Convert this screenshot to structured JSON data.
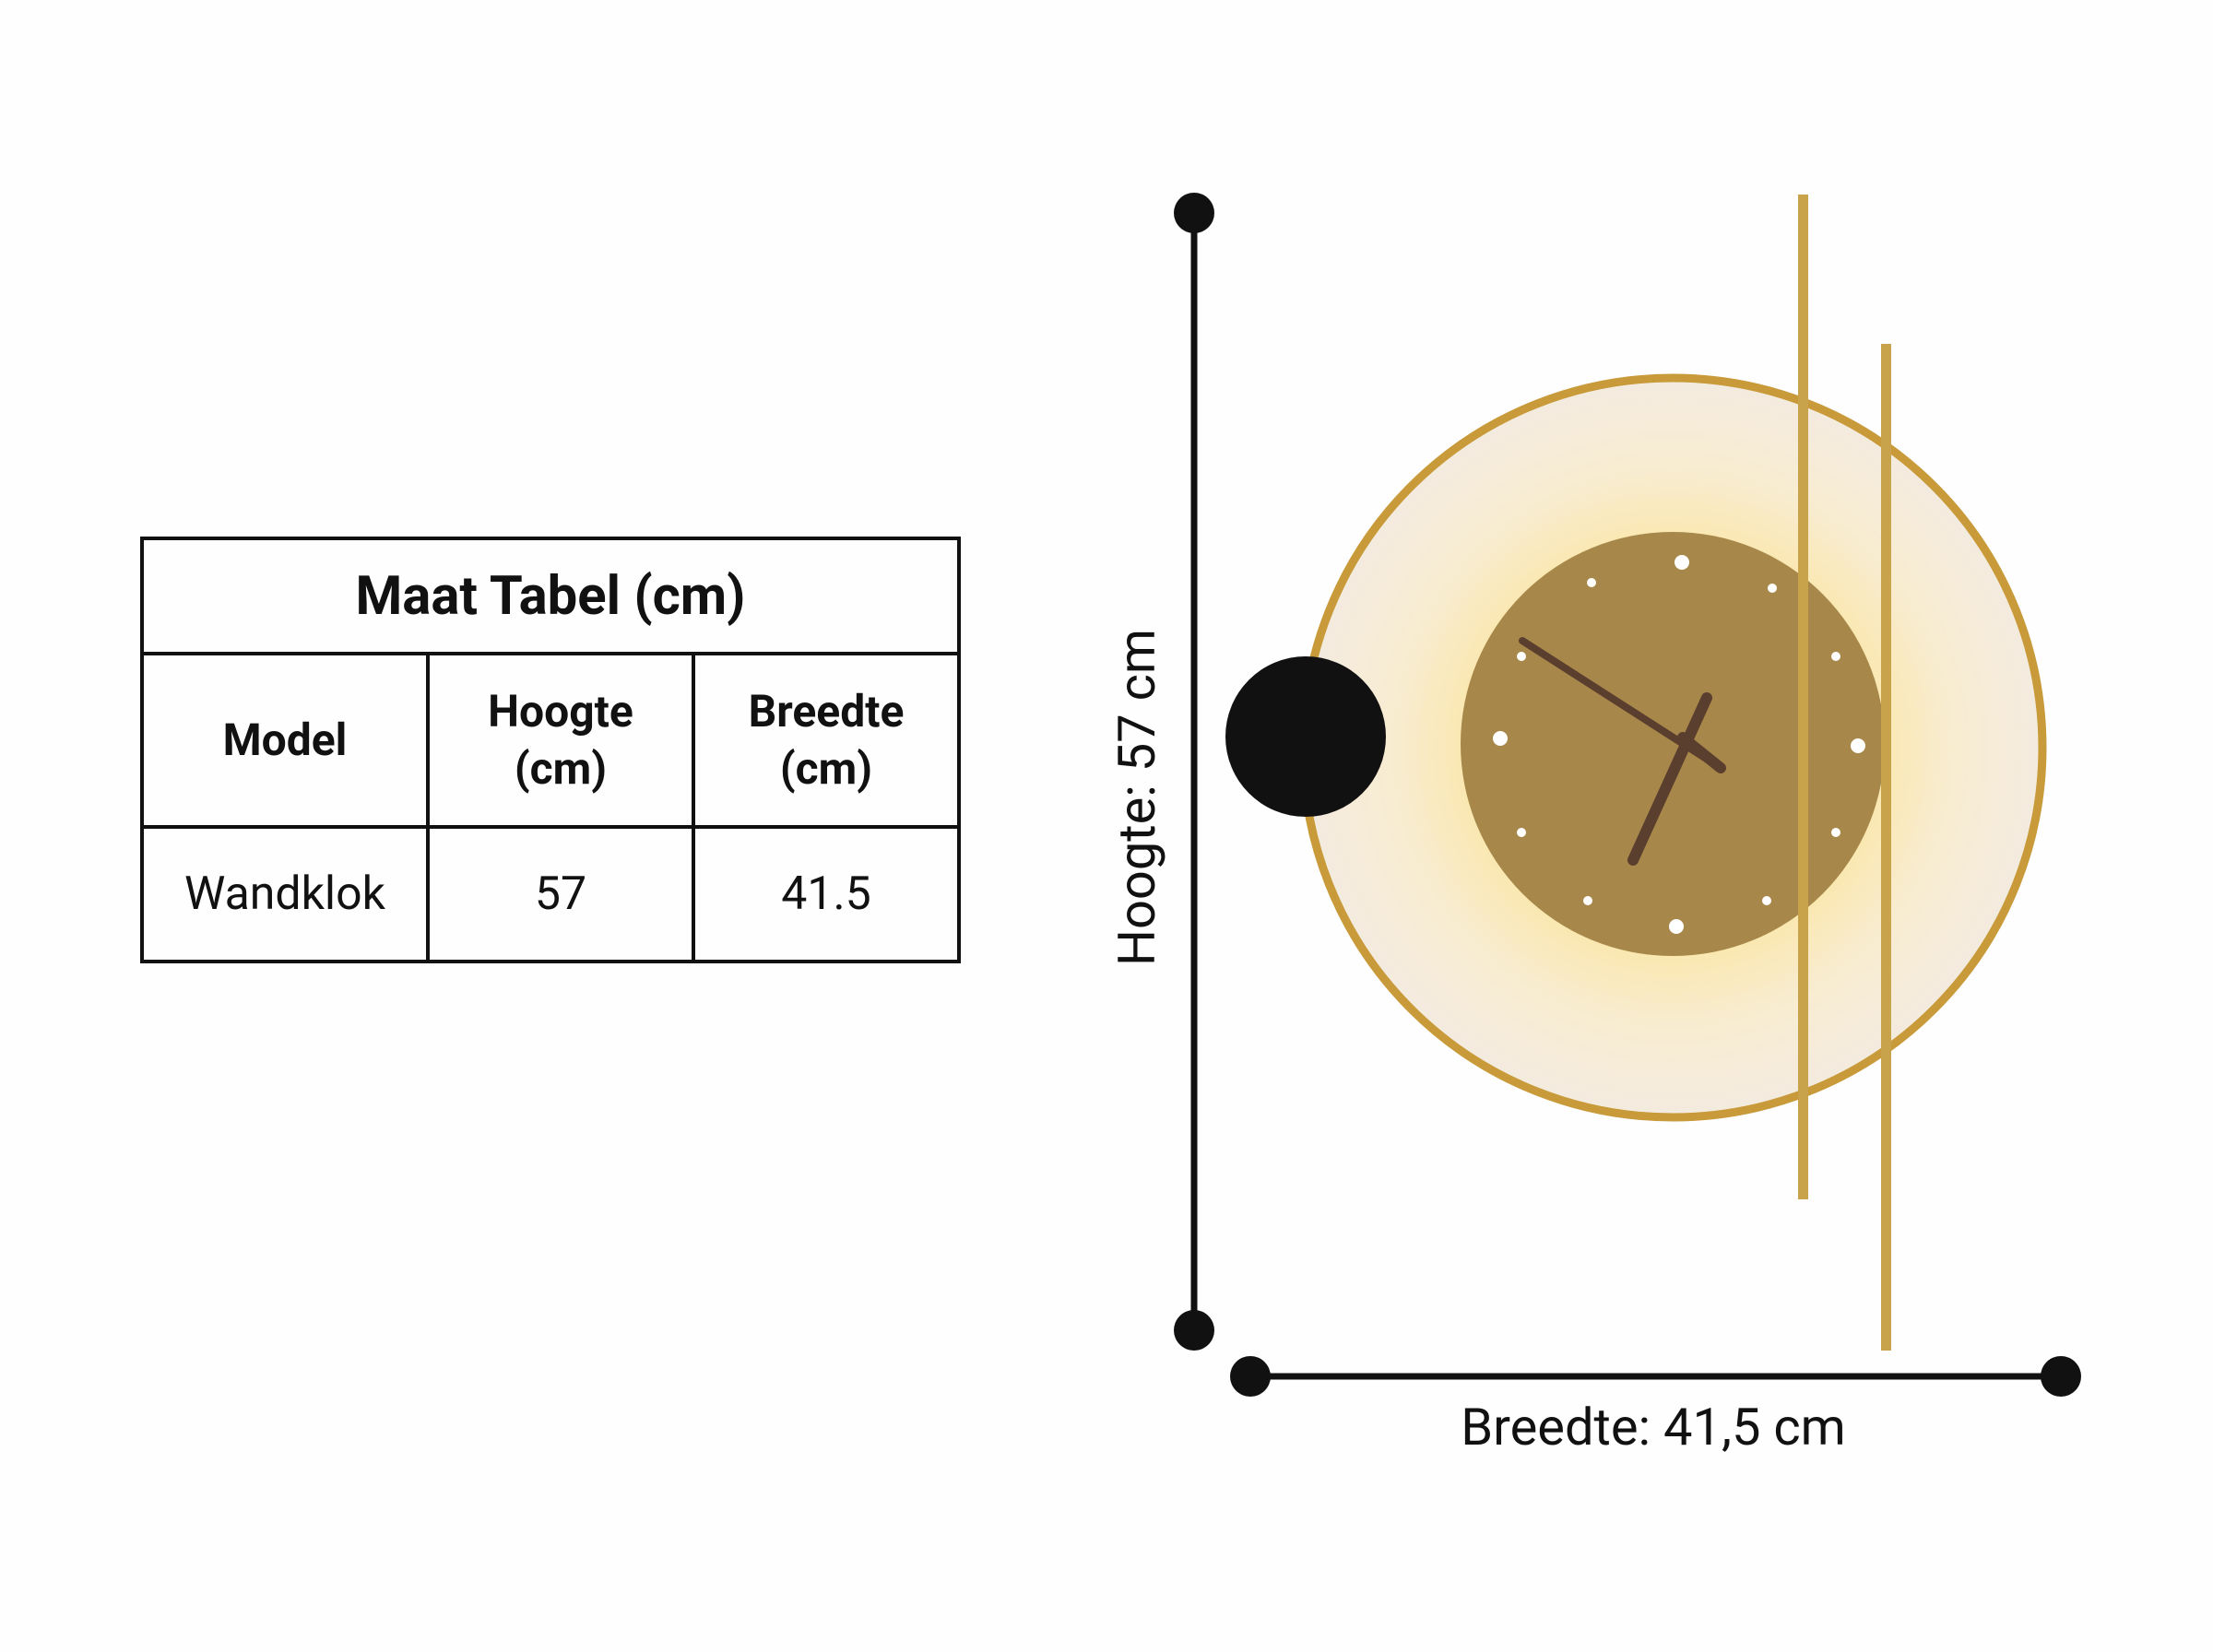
{
  "table": {
    "title": "Maat Tabel (cm)",
    "headers": [
      "Model",
      "Hoogte (cm)",
      "Breedte (cm)"
    ],
    "rows": [
      [
        "Wandklok",
        "57",
        "41.5"
      ]
    ]
  },
  "dimensions": {
    "height_label": "Hoogte: 57 cm",
    "width_label": "Breedte: 41,5 cm"
  }
}
